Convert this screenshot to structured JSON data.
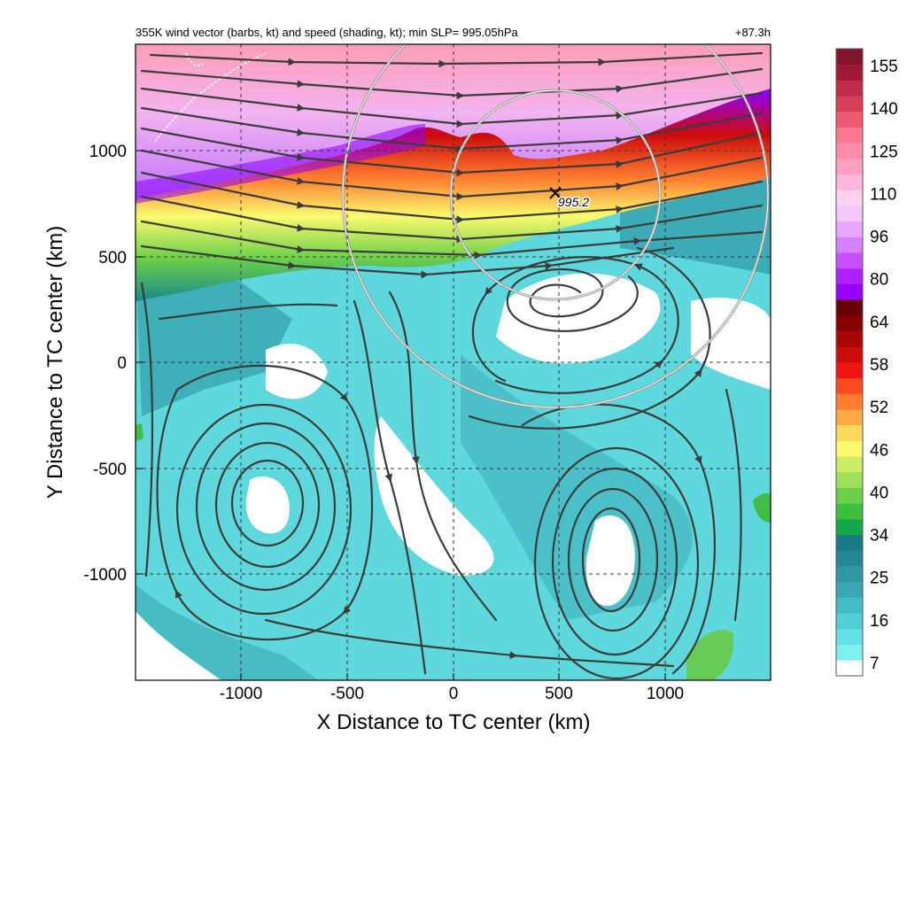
{
  "header": {
    "title": "355K wind vector (barbs, kt) and speed (shading, kt); min SLP= 995.05hPa",
    "forecast_hour": "+87.3h"
  },
  "axes": {
    "xlabel": "X Distance to TC center (km)",
    "ylabel": "Y Distance to TC center (km)",
    "x_ticks": [
      "-1000",
      "-500",
      "0",
      "500",
      "1000"
    ],
    "y_ticks": [
      "1000",
      "500",
      "0",
      "-500",
      "-1000"
    ],
    "x_range": [
      -1500,
      1500
    ],
    "y_range": [
      -1500,
      1500
    ]
  },
  "center_marker": {
    "label": "995.2",
    "x_km": 480,
    "y_km": 800
  },
  "colorbar": {
    "labels": [
      "155",
      "140",
      "125",
      "110",
      "96",
      "80",
      "64",
      "58",
      "52",
      "46",
      "40",
      "34",
      "25",
      "16",
      "7"
    ],
    "colors": [
      "#ffffff",
      "#7ef0f0",
      "#64e0e6",
      "#52cfd6",
      "#44bcc6",
      "#38a8b4",
      "#2e98a4",
      "#248894",
      "#1a7a86",
      "#12a84a",
      "#3cbf3c",
      "#6ccf4a",
      "#9ee05a",
      "#ccec64",
      "#fafa6e",
      "#ffd95a",
      "#ffaa44",
      "#ff7c30",
      "#ff4a1e",
      "#f01414",
      "#cc0c0c",
      "#a80606",
      "#860000",
      "#660000",
      "#9a00ff",
      "#b020ff",
      "#c650ff",
      "#d880ff",
      "#e8a8ff",
      "#f4c8ff",
      "#ffd0f0",
      "#ffb8dc",
      "#ffa0c0",
      "#ff8ca8",
      "#ff7890",
      "#f05a6e",
      "#d8405a",
      "#c02c48",
      "#a01a38",
      "#80142c"
    ]
  },
  "style": {
    "streamline_color": "#3c3c3c",
    "ring_color": "#9a9a9a"
  }
}
